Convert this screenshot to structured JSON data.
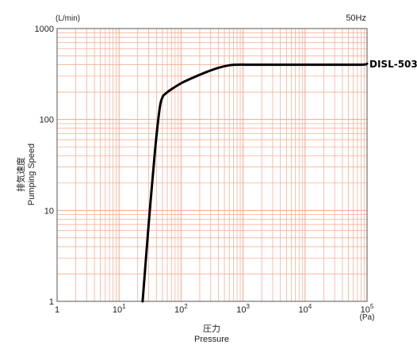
{
  "chart_data": {
    "type": "line",
    "title": "",
    "frequency_label": "50Hz",
    "x_scale": "log",
    "y_scale": "log",
    "xlim": [
      1,
      100000
    ],
    "ylim": [
      1,
      1000
    ],
    "grid": true,
    "grid_color": "#f4a58a",
    "line_color": "#000000",
    "xlabel_jp": "圧力",
    "xlabel": "Pressure",
    "x_unit": "(Pa)",
    "ylabel_jp": "排気速度",
    "ylabel": "Pumping Speed",
    "y_unit": "(L/min)",
    "x_ticks": [
      {
        "value": 1,
        "base": "1",
        "exp": ""
      },
      {
        "value": 10,
        "base": "10",
        "exp": "1"
      },
      {
        "value": 100,
        "base": "10",
        "exp": "2"
      },
      {
        "value": 1000,
        "base": "10",
        "exp": "3"
      },
      {
        "value": 10000,
        "base": "10",
        "exp": "4"
      },
      {
        "value": 100000,
        "base": "10",
        "exp": "5"
      }
    ],
    "y_ticks": [
      {
        "value": 1,
        "label": "1"
      },
      {
        "value": 10,
        "label": "10"
      },
      {
        "value": 100,
        "label": "100"
      },
      {
        "value": 1000,
        "label": "1000"
      }
    ],
    "series": [
      {
        "name": "DISL-503",
        "x": [
          24,
          30,
          38,
          45,
          50,
          55,
          70,
          100,
          150,
          250,
          400,
          600,
          800,
          1500,
          5000,
          20000,
          80000,
          100000
        ],
        "y": [
          1,
          7,
          45,
          130,
          175,
          190,
          215,
          250,
          285,
          330,
          370,
          395,
          400,
          400,
          400,
          400,
          400,
          410
        ]
      }
    ]
  }
}
